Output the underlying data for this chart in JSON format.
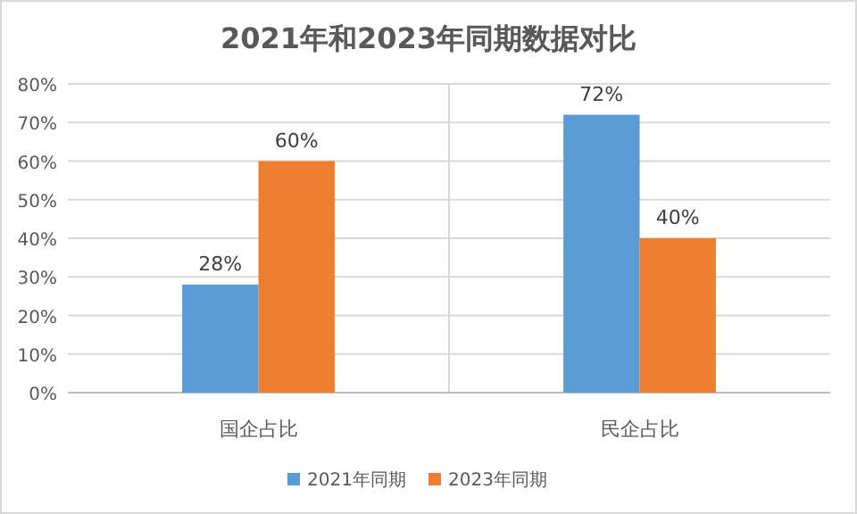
{
  "chart_data": {
    "type": "bar",
    "title": "2021年和2023年同期数据对比",
    "categories": [
      "国企占比",
      "民企占比"
    ],
    "series": [
      {
        "name": "2021年同期",
        "color": "#5b9bd5",
        "values": [
          28,
          72
        ],
        "value_labels": [
          "28%",
          "72%"
        ]
      },
      {
        "name": "2023年同期",
        "color": "#ed7d31",
        "values": [
          60,
          40
        ],
        "value_labels": [
          "60%",
          "40%"
        ]
      }
    ],
    "ylim": [
      0,
      80
    ],
    "yticks": [
      {
        "value": 0,
        "label": "0%"
      },
      {
        "value": 10,
        "label": "10%"
      },
      {
        "value": 20,
        "label": "20%"
      },
      {
        "value": 30,
        "label": "30%"
      },
      {
        "value": 40,
        "label": "40%"
      },
      {
        "value": 50,
        "label": "50%"
      },
      {
        "value": 60,
        "label": "60%"
      },
      {
        "value": 70,
        "label": "70%"
      },
      {
        "value": 80,
        "label": "80%"
      }
    ],
    "grid": true,
    "legend": "bottom"
  }
}
